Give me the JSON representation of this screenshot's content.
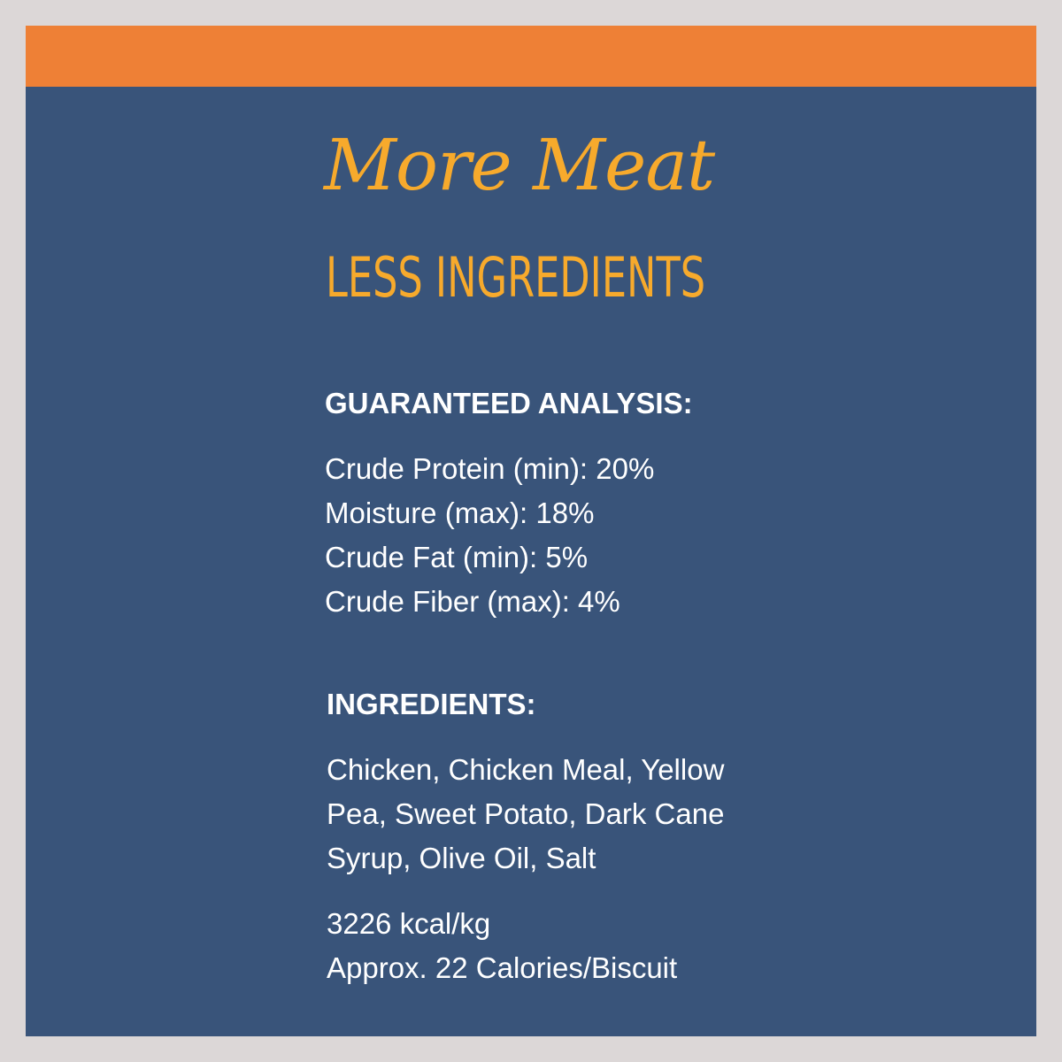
{
  "headline": {
    "line1": "More Meat",
    "line2": "LESS INGREDIENTS"
  },
  "analysis": {
    "heading": "GUARANTEED ANALYSIS:",
    "items": [
      "Crude Protein (min): 20%",
      "Moisture (max): 18%",
      "Crude Fat (min): 5%",
      "Crude Fiber (max): 4%"
    ]
  },
  "ingredients": {
    "heading": "INGREDIENTS:",
    "lines": [
      "Chicken, Chicken Meal, Yellow",
      "Pea, Sweet Potato, Dark Cane",
      "Syrup, Olive Oil, Salt"
    ]
  },
  "calories": {
    "lines": [
      "3226 kcal/kg",
      "Approx. 22 Calories/Biscuit"
    ]
  },
  "colors": {
    "background": "#39547a",
    "accent_stripe": "#ee8036",
    "headline": "#f7aa2c",
    "text": "#ffffff",
    "border": "#dcd7d7"
  }
}
